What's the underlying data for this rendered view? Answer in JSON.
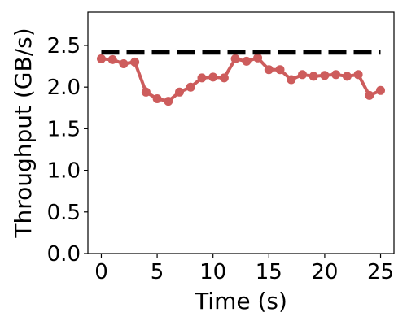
{
  "chart_data": {
    "type": "line",
    "title": "",
    "xlabel": "Time (s)",
    "ylabel": "Throughput (GB/s)",
    "xlim": [
      -1.2,
      26.2
    ],
    "ylim": [
      0.0,
      2.9
    ],
    "xticks": [
      0,
      5,
      10,
      15,
      20,
      25
    ],
    "yticks": [
      0.0,
      0.5,
      1.0,
      1.5,
      2.0,
      2.5
    ],
    "xtick_labels": [
      "0",
      "5",
      "10",
      "15",
      "20",
      "25"
    ],
    "ytick_labels": [
      "0.0",
      "0.5",
      "1.0",
      "1.5",
      "2.0",
      "2.5"
    ],
    "grid": false,
    "legend": "none",
    "series": [
      {
        "style": "line-marker",
        "color": "#cd5c5c",
        "x": [
          0,
          1,
          2,
          3,
          4,
          5,
          6,
          7,
          8,
          9,
          10,
          11,
          12,
          13,
          14,
          15,
          16,
          17,
          18,
          19,
          20,
          21,
          22,
          23,
          24,
          25
        ],
        "values": [
          2.34,
          2.33,
          2.28,
          2.3,
          1.94,
          1.86,
          1.83,
          1.94,
          2.0,
          2.11,
          2.12,
          2.11,
          2.34,
          2.31,
          2.35,
          2.21,
          2.21,
          2.09,
          2.15,
          2.13,
          2.14,
          2.15,
          2.13,
          2.15,
          1.9,
          1.96
        ]
      },
      {
        "style": "dashed",
        "color": "#000000",
        "x": [
          0,
          25
        ],
        "values": [
          2.42,
          2.42
        ]
      }
    ]
  }
}
